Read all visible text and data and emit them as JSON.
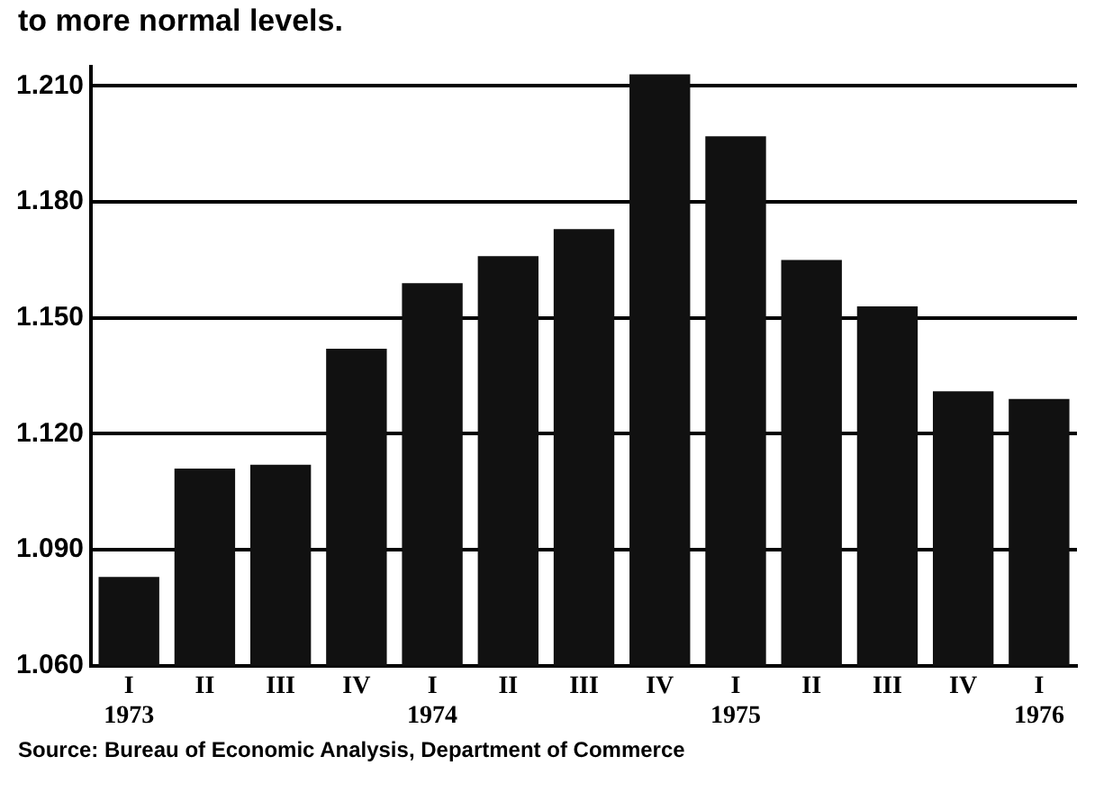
{
  "chart_data": {
    "type": "bar",
    "title": "to more normal levels.",
    "categories": [
      "I\n1973",
      "II",
      "III",
      "IV",
      "I\n1974",
      "II",
      "III",
      "IV",
      "I\n1975",
      "II",
      "III",
      "IV",
      "I\n1976"
    ],
    "values": [
      1.083,
      1.111,
      1.112,
      1.142,
      1.159,
      1.166,
      1.173,
      1.213,
      1.197,
      1.165,
      1.153,
      1.131,
      1.129
    ],
    "color": "#111111",
    "ylim": [
      1.06,
      1.215
    ],
    "yticks": [
      {
        "value": 1.06,
        "label": "1.060"
      },
      {
        "value": 1.09,
        "label": "1.090"
      },
      {
        "value": 1.12,
        "label": "1.120"
      },
      {
        "value": 1.15,
        "label": "1.150"
      },
      {
        "value": 1.18,
        "label": "1.180"
      },
      {
        "value": 1.21,
        "label": "1.210"
      }
    ],
    "grid": "y",
    "annotations": [
      "Source: Bureau of Economic Analysis, Department of Commerce"
    ]
  }
}
